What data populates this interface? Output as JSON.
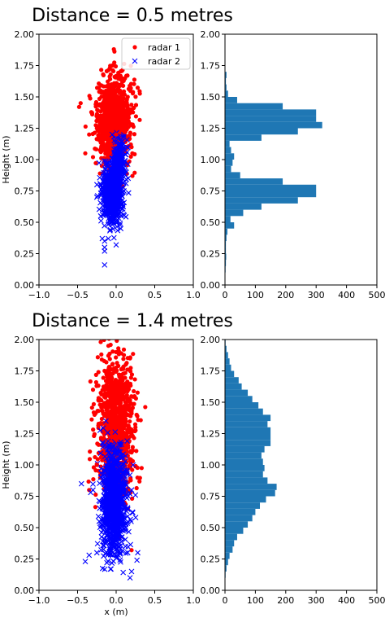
{
  "chart_data": [
    {
      "type": "scatter",
      "panel": "top-left",
      "title": "Distance = 0.5 metres",
      "xlabel": "",
      "ylabel": "Height (m)",
      "xlim": [
        -1.0,
        1.0
      ],
      "ylim": [
        0.0,
        2.0
      ],
      "xticks": [
        "−1.0",
        "−0.5",
        "0.0",
        "0.5",
        "1.0"
      ],
      "yticks": [
        "0.00",
        "0.25",
        "0.50",
        "0.75",
        "1.00",
        "1.25",
        "1.50",
        "1.75",
        "2.00"
      ],
      "legend": {
        "placement": "top-right",
        "entries": [
          "radar 1",
          "radar 2"
        ]
      },
      "series": [
        {
          "name": "radar 1",
          "color": "#ff0000",
          "marker": "dot",
          "points": [
            [
              -0.3,
              1.02
            ],
            [
              -0.4,
              1.05
            ],
            [
              -0.2,
              1.35
            ],
            [
              -0.1,
              1.45
            ],
            [
              -0.06,
              1.6
            ],
            [
              -0.05,
              1.75
            ],
            [
              -0.03,
              1.88
            ],
            [
              0.0,
              1.2
            ],
            [
              0.05,
              1.55
            ],
            [
              0.1,
              1.3
            ],
            [
              0.15,
              1.5
            ],
            [
              0.2,
              1.1
            ],
            [
              0.21,
              1.05
            ],
            [
              -0.46,
              1.45
            ],
            [
              -0.48,
              1.42
            ],
            [
              -0.25,
              1.25
            ],
            [
              -0.15,
              1.4
            ],
            [
              -0.05,
              1.35
            ],
            [
              0.05,
              1.3
            ],
            [
              0.12,
              1.22
            ],
            [
              -0.35,
              1.2
            ],
            [
              -0.1,
              1.5
            ],
            [
              0.0,
              1.55
            ],
            [
              0.08,
              1.62
            ],
            [
              -0.02,
              1.66
            ],
            [
              -0.12,
              1.12
            ],
            [
              -0.22,
              1.32
            ],
            [
              0.17,
              1.38
            ],
            [
              -0.08,
              1.28
            ],
            [
              0.02,
              1.42
            ]
          ]
        },
        {
          "name": "radar 2",
          "color": "#0000ff",
          "marker": "x",
          "points": [
            [
              -0.15,
              0.16
            ],
            [
              -0.15,
              0.27
            ],
            [
              -0.15,
              0.3
            ],
            [
              -0.15,
              0.35
            ],
            [
              -0.18,
              0.37
            ],
            [
              0.0,
              0.32
            ],
            [
              -0.2,
              0.55
            ],
            [
              -0.1,
              0.6
            ],
            [
              0.05,
              0.7
            ],
            [
              0.1,
              0.75
            ],
            [
              0.0,
              0.85
            ],
            [
              0.05,
              0.95
            ],
            [
              0.08,
              1.05
            ],
            [
              -0.05,
              1.2
            ],
            [
              0.1,
              1.18
            ],
            [
              0.14,
              1.1
            ],
            [
              -0.25,
              0.7
            ],
            [
              -0.1,
              0.8
            ],
            [
              0.02,
              0.62
            ],
            [
              -0.05,
              0.5
            ],
            [
              0.06,
              0.45
            ],
            [
              -0.18,
              0.78
            ],
            [
              -0.02,
              0.72
            ],
            [
              0.11,
              0.88
            ],
            [
              -0.12,
              0.66
            ]
          ]
        }
      ],
      "clusters": [
        {
          "series": "radar 1",
          "center": [
            -0.03,
            1.3
          ],
          "spread": [
            0.11,
            0.17
          ],
          "count": 1100
        },
        {
          "series": "radar 2",
          "center": [
            -0.05,
            0.72
          ],
          "spread": [
            0.06,
            0.11
          ],
          "count": 850
        },
        {
          "series": "radar 2",
          "center": [
            0.03,
            0.97
          ],
          "spread": [
            0.05,
            0.1
          ],
          "count": 200
        }
      ]
    },
    {
      "type": "bar",
      "orientation": "horizontal",
      "panel": "top-right",
      "title": "",
      "xlabel": "",
      "ylabel": "",
      "xlim": [
        0,
        500
      ],
      "ylim": [
        0.0,
        2.0
      ],
      "xticks": [
        "0",
        "100",
        "200",
        "300",
        "400",
        "500"
      ],
      "yticks": [
        "0.00",
        "0.25",
        "0.50",
        "0.75",
        "1.00",
        "1.25",
        "1.50",
        "1.75",
        "2.00"
      ],
      "color": "#1f77b4",
      "bin_edges": [
        0.0,
        0.05,
        0.1,
        0.15,
        0.2,
        0.25,
        0.3,
        0.35,
        0.4,
        0.45,
        0.5,
        0.55,
        0.6,
        0.65,
        0.7,
        0.75,
        0.8,
        0.85,
        0.9,
        0.95,
        1.0,
        1.05,
        1.1,
        1.15,
        1.2,
        1.25,
        1.3,
        1.35,
        1.4,
        1.45,
        1.5,
        1.55,
        1.6,
        1.65,
        1.7,
        1.75,
        1.8,
        1.85,
        1.9,
        1.95,
        2.0
      ],
      "counts": [
        0,
        0,
        2,
        3,
        4,
        3,
        3,
        5,
        8,
        30,
        18,
        60,
        120,
        240,
        300,
        300,
        190,
        50,
        20,
        25,
        30,
        20,
        15,
        120,
        240,
        320,
        300,
        300,
        190,
        40,
        10,
        5,
        3,
        5,
        0,
        0,
        0,
        0,
        0,
        0
      ]
    },
    {
      "type": "scatter",
      "panel": "bottom-left",
      "title": "Distance = 1.4 metres",
      "xlabel": "x (m)",
      "ylabel": "Height (m)",
      "xlim": [
        -1.0,
        1.0
      ],
      "ylim": [
        0.0,
        2.0
      ],
      "xticks": [
        "−1.0",
        "−0.5",
        "0.0",
        "0.5",
        "1.0"
      ],
      "yticks": [
        "0.00",
        "0.25",
        "0.50",
        "0.75",
        "1.00",
        "1.25",
        "1.50",
        "1.75",
        "2.00"
      ],
      "series": [
        {
          "name": "radar 1",
          "color": "#ff0000",
          "marker": "dot",
          "points": [
            [
              -0.2,
              1.98
            ],
            [
              -0.1,
              1.95
            ],
            [
              0.0,
              1.9
            ],
            [
              0.1,
              1.92
            ],
            [
              0.18,
              1.85
            ],
            [
              -0.3,
              1.6
            ],
            [
              0.25,
              1.3
            ],
            [
              -0.25,
              1.0
            ],
            [
              -0.35,
              0.8
            ],
            [
              -0.15,
              1.75
            ],
            [
              0.05,
              1.7
            ],
            [
              -0.05,
              1.8
            ],
            [
              0.15,
              1.4
            ],
            [
              0.2,
              1.1
            ],
            [
              0.2,
              0.32
            ],
            [
              -0.28,
              1.4
            ],
            [
              -0.12,
              1.5
            ],
            [
              0.08,
              1.6
            ],
            [
              0.0,
              1.2
            ]
          ]
        },
        {
          "name": "radar 2",
          "color": "#0000ff",
          "marker": "x",
          "points": [
            [
              -0.45,
              0.85
            ],
            [
              -0.3,
              0.8
            ],
            [
              -0.2,
              0.9
            ],
            [
              0.1,
              0.85
            ],
            [
              0.2,
              0.8
            ],
            [
              -0.4,
              0.23
            ],
            [
              -0.25,
              0.3
            ],
            [
              -0.12,
              0.22
            ],
            [
              0.0,
              0.28
            ],
            [
              0.15,
              0.3
            ],
            [
              0.28,
              0.3
            ],
            [
              0.27,
              0.24
            ],
            [
              0.2,
              0.15
            ],
            [
              0.12,
              0.35
            ],
            [
              -0.35,
              0.28
            ],
            [
              -0.05,
              0.4
            ],
            [
              0.05,
              0.45
            ],
            [
              0.1,
              0.6
            ],
            [
              -0.15,
              0.7
            ],
            [
              0.22,
              1.0
            ],
            [
              0.25,
              0.76
            ],
            [
              -0.33,
              0.78
            ],
            [
              0.18,
              0.1
            ],
            [
              0.02,
              0.33
            ],
            [
              -0.22,
              0.55
            ]
          ]
        }
      ],
      "clusters": [
        {
          "series": "radar 1",
          "center": [
            0.0,
            1.3
          ],
          "spread": [
            0.11,
            0.28
          ],
          "count": 1100
        },
        {
          "series": "radar 2",
          "center": [
            -0.03,
            0.7
          ],
          "spread": [
            0.08,
            0.22
          ],
          "count": 1000
        }
      ]
    },
    {
      "type": "bar",
      "orientation": "horizontal",
      "panel": "bottom-right",
      "title": "",
      "xlabel": "",
      "ylabel": "",
      "xlim": [
        0,
        500
      ],
      "ylim": [
        0.0,
        2.0
      ],
      "xticks": [
        "0",
        "100",
        "200",
        "300",
        "400",
        "500"
      ],
      "yticks": [
        "0.00",
        "0.25",
        "0.50",
        "0.75",
        "1.00",
        "1.25",
        "1.50",
        "1.75",
        "2.00"
      ],
      "color": "#1f77b4",
      "bin_edges": [
        0.0,
        0.05,
        0.1,
        0.15,
        0.2,
        0.25,
        0.3,
        0.35,
        0.4,
        0.45,
        0.5,
        0.55,
        0.6,
        0.65,
        0.7,
        0.75,
        0.8,
        0.85,
        0.9,
        0.95,
        1.0,
        1.05,
        1.1,
        1.15,
        1.2,
        1.25,
        1.3,
        1.35,
        1.4,
        1.45,
        1.5,
        1.55,
        1.6,
        1.65,
        1.7,
        1.75,
        1.8,
        1.85,
        1.9,
        1.95,
        2.0
      ],
      "counts": [
        0,
        0,
        2,
        5,
        10,
        15,
        25,
        30,
        40,
        60,
        75,
        90,
        100,
        115,
        135,
        165,
        170,
        140,
        125,
        130,
        125,
        120,
        130,
        150,
        150,
        150,
        140,
        150,
        125,
        110,
        90,
        75,
        55,
        45,
        30,
        20,
        15,
        10,
        5,
        2
      ]
    }
  ]
}
